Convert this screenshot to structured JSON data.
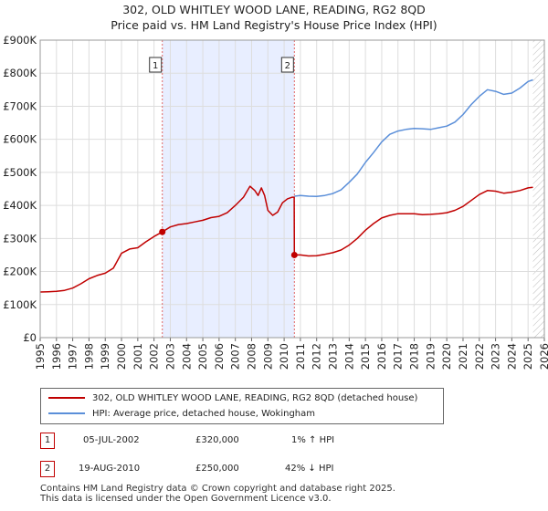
{
  "title": {
    "line1": "302, OLD WHITLEY WOOD LANE, READING, RG2 8QD",
    "line2": "Price paid vs. HM Land Registry's House Price Index (HPI)"
  },
  "chart_data": {
    "type": "line",
    "title": "302, OLD WHITLEY WOOD LANE, READING, RG2 8QD — Price paid vs. HM Land Registry's House Price Index (HPI)",
    "xlabel": "",
    "ylabel": "",
    "xlim": [
      1995,
      2026
    ],
    "ylim": [
      0,
      900000
    ],
    "x_ticks": [
      "1995",
      "1996",
      "1997",
      "1998",
      "1999",
      "2000",
      "2001",
      "2002",
      "2003",
      "2004",
      "2005",
      "2006",
      "2007",
      "2008",
      "2009",
      "2010",
      "2011",
      "2012",
      "2013",
      "2014",
      "2015",
      "2016",
      "2017",
      "2018",
      "2019",
      "2020",
      "2021",
      "2022",
      "2023",
      "2024",
      "2025",
      "2026"
    ],
    "y_ticks": [
      {
        "value": 0,
        "label": "£0"
      },
      {
        "value": 100000,
        "label": "£100K"
      },
      {
        "value": 200000,
        "label": "£200K"
      },
      {
        "value": 300000,
        "label": "£300K"
      },
      {
        "value": 400000,
        "label": "£400K"
      },
      {
        "value": 500000,
        "label": "£500K"
      },
      {
        "value": 600000,
        "label": "£600K"
      },
      {
        "value": 700000,
        "label": "£700K"
      },
      {
        "value": 800000,
        "label": "£800K"
      },
      {
        "value": 900000,
        "label": "£900K"
      }
    ],
    "grid": true,
    "shaded_period": [
      2002.51,
      2010.63
    ],
    "future_hatch_from": 2025.3,
    "series": [
      {
        "name": "302, OLD WHITLEY WOOD LANE, READING, RG2 8QD (detached house)",
        "color": "#c00000",
        "points": [
          [
            1995.0,
            138000
          ],
          [
            1995.5,
            139000
          ],
          [
            1996.0,
            140000
          ],
          [
            1996.5,
            143000
          ],
          [
            1997.0,
            150000
          ],
          [
            1997.5,
            163000
          ],
          [
            1998.0,
            178000
          ],
          [
            1998.5,
            188000
          ],
          [
            1999.0,
            195000
          ],
          [
            1999.5,
            210000
          ],
          [
            2000.0,
            255000
          ],
          [
            2000.5,
            268000
          ],
          [
            2001.0,
            272000
          ],
          [
            2001.5,
            290000
          ],
          [
            2002.0,
            306000
          ],
          [
            2002.51,
            320000
          ],
          [
            2003.0,
            335000
          ],
          [
            2003.5,
            342000
          ],
          [
            2004.0,
            345000
          ],
          [
            2004.5,
            350000
          ],
          [
            2005.0,
            355000
          ],
          [
            2005.5,
            363000
          ],
          [
            2006.0,
            367000
          ],
          [
            2006.5,
            378000
          ],
          [
            2007.0,
            400000
          ],
          [
            2007.5,
            425000
          ],
          [
            2007.9,
            458000
          ],
          [
            2008.2,
            445000
          ],
          [
            2008.4,
            430000
          ],
          [
            2008.6,
            453000
          ],
          [
            2008.8,
            430000
          ],
          [
            2009.0,
            385000
          ],
          [
            2009.3,
            370000
          ],
          [
            2009.6,
            380000
          ],
          [
            2009.9,
            408000
          ],
          [
            2010.2,
            420000
          ],
          [
            2010.5,
            425000
          ],
          [
            2010.62,
            425000
          ],
          [
            2010.63,
            250000
          ],
          [
            2011.0,
            250000
          ],
          [
            2011.5,
            247000
          ],
          [
            2012.0,
            248000
          ],
          [
            2012.5,
            252000
          ],
          [
            2013.0,
            257000
          ],
          [
            2013.5,
            265000
          ],
          [
            2014.0,
            280000
          ],
          [
            2014.5,
            300000
          ],
          [
            2015.0,
            325000
          ],
          [
            2015.5,
            345000
          ],
          [
            2016.0,
            362000
          ],
          [
            2016.5,
            370000
          ],
          [
            2017.0,
            375000
          ],
          [
            2017.5,
            375000
          ],
          [
            2018.0,
            375000
          ],
          [
            2018.5,
            372000
          ],
          [
            2019.0,
            373000
          ],
          [
            2019.5,
            375000
          ],
          [
            2020.0,
            378000
          ],
          [
            2020.5,
            385000
          ],
          [
            2021.0,
            397000
          ],
          [
            2021.5,
            415000
          ],
          [
            2022.0,
            433000
          ],
          [
            2022.5,
            445000
          ],
          [
            2023.0,
            443000
          ],
          [
            2023.5,
            437000
          ],
          [
            2024.0,
            440000
          ],
          [
            2024.5,
            445000
          ],
          [
            2025.0,
            453000
          ],
          [
            2025.3,
            455000
          ]
        ]
      },
      {
        "name": "HPI: Average price, detached house, Wokingham",
        "color": "#5b8fd9",
        "points": [
          [
            2010.63,
            428000
          ],
          [
            2011.0,
            430000
          ],
          [
            2011.5,
            428000
          ],
          [
            2012.0,
            427000
          ],
          [
            2012.5,
            430000
          ],
          [
            2013.0,
            436000
          ],
          [
            2013.5,
            447000
          ],
          [
            2014.0,
            470000
          ],
          [
            2014.5,
            495000
          ],
          [
            2015.0,
            530000
          ],
          [
            2015.5,
            560000
          ],
          [
            2016.0,
            592000
          ],
          [
            2016.5,
            615000
          ],
          [
            2017.0,
            625000
          ],
          [
            2017.5,
            630000
          ],
          [
            2018.0,
            633000
          ],
          [
            2018.5,
            632000
          ],
          [
            2019.0,
            630000
          ],
          [
            2019.5,
            635000
          ],
          [
            2020.0,
            640000
          ],
          [
            2020.5,
            652000
          ],
          [
            2021.0,
            675000
          ],
          [
            2021.5,
            705000
          ],
          [
            2022.0,
            730000
          ],
          [
            2022.5,
            750000
          ],
          [
            2023.0,
            745000
          ],
          [
            2023.5,
            736000
          ],
          [
            2024.0,
            740000
          ],
          [
            2024.5,
            755000
          ],
          [
            2025.0,
            775000
          ],
          [
            2025.3,
            780000
          ]
        ]
      }
    ],
    "annotations": [
      {
        "id": "1",
        "x": 2002.51,
        "y": 320000,
        "label": "1"
      },
      {
        "id": "2",
        "x": 2010.63,
        "y": 250000,
        "label": "2"
      }
    ]
  },
  "legend": {
    "entries": [
      {
        "label": "302, OLD WHITLEY WOOD LANE, READING, RG2 8QD (detached house)",
        "color": "#c00000"
      },
      {
        "label": "HPI: Average price, detached house, Wokingham",
        "color": "#5b8fd9"
      }
    ]
  },
  "transactions": [
    {
      "num": "1",
      "date": "05-JUL-2002",
      "price": "£320,000",
      "hpi": "1% ↑ HPI"
    },
    {
      "num": "2",
      "date": "19-AUG-2010",
      "price": "£250,000",
      "hpi": "42% ↓ HPI"
    }
  ],
  "footer": {
    "line1": "Contains HM Land Registry data © Crown copyright and database right 2025.",
    "line2": "This data is licensed under the Open Government Licence v3.0."
  }
}
